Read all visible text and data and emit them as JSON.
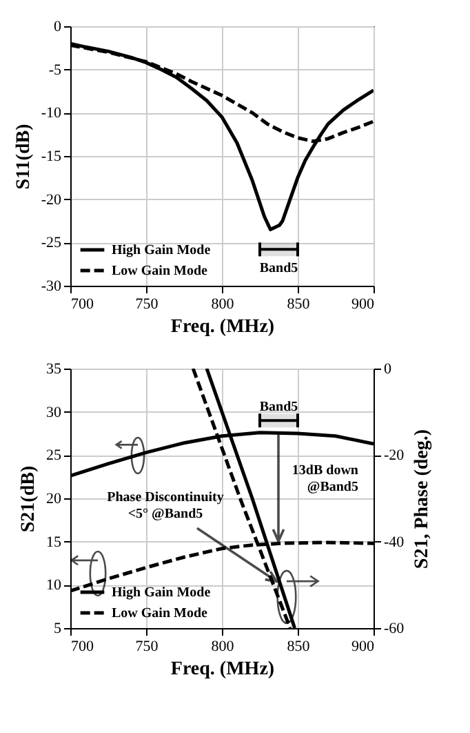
{
  "chart_data": [
    {
      "type": "line",
      "xlabel": "Freq.    (MHz)",
      "ylabel": "S11(dB)",
      "xlim": [
        700,
        900
      ],
      "xticks": [
        700,
        750,
        800,
        850,
        900
      ],
      "ylim": [
        -30,
        0
      ],
      "yticks": [
        -30,
        -25,
        -20,
        -15,
        -10,
        -5,
        0
      ],
      "grid": true,
      "legend": "bottom left",
      "bands": [
        {
          "axis": "x",
          "from": 825,
          "to": 850,
          "label": "Band5"
        }
      ],
      "series": [
        {
          "name": "High Gain Mode",
          "color": "#000000",
          "line_style": "solid",
          "x": [
            700,
            710,
            725,
            740,
            750,
            760,
            770,
            780,
            790,
            800,
            810,
            820,
            828,
            832,
            838,
            840,
            845,
            850,
            855,
            860,
            865,
            870,
            880,
            890,
            900
          ],
          "values": [
            -2,
            -2.4,
            -2.9,
            -3.6,
            -4.2,
            -5,
            -5.9,
            -7.2,
            -8.6,
            -10.5,
            -13.5,
            -17.8,
            -22,
            -23.5,
            -23,
            -22.5,
            -20,
            -17.5,
            -15.5,
            -14,
            -12.6,
            -11.3,
            -9.7,
            -8.5,
            -7.4
          ]
        },
        {
          "name": "Low Gain Mode",
          "color": "#000000",
          "line_style": "dashed",
          "x": [
            700,
            725,
            750,
            770,
            780,
            800,
            820,
            830,
            840,
            850,
            860,
            870,
            880,
            890,
            900
          ],
          "values": [
            -2.2,
            -3,
            -4.1,
            -5.5,
            -6.4,
            -8,
            -10,
            -11.3,
            -12.2,
            -12.9,
            -13.3,
            -13,
            -12.3,
            -11.7,
            -11
          ]
        }
      ]
    },
    {
      "type": "line",
      "xlabel": "Freq.    (MHz)",
      "ylabel": "S21(dB)",
      "y2label": "S21,  Phase  (deg.)",
      "xlim": [
        700,
        900
      ],
      "xticks": [
        700,
        750,
        800,
        850,
        900
      ],
      "ylim": [
        5,
        35
      ],
      "yticks": [
        5,
        10,
        15,
        20,
        25,
        30,
        35
      ],
      "y2lim": [
        -60,
        0
      ],
      "y2ticks": [
        -60,
        -40,
        -20,
        0
      ],
      "grid": true,
      "legend": "bottom left",
      "bands": [
        {
          "axis": "x",
          "from": 825,
          "to": 850,
          "label": "Band5"
        }
      ],
      "annotations": [
        {
          "text": "Phase Discontinuity\n<5°  @Band5",
          "x": 836,
          "y": 10.4
        },
        "13dB down\n@Band5"
      ],
      "series": [
        {
          "name": "High Gain Mode",
          "color": "#000000",
          "line_style": "solid",
          "x": [
            700,
            725,
            750,
            775,
            800,
            825,
            850,
            875,
            900
          ],
          "values": [
            22.6,
            24,
            25.3,
            26.4,
            27.2,
            27.6,
            27.5,
            27.2,
            26.3
          ]
        },
        {
          "name": "Low Gain Mode",
          "color": "#000000",
          "line_style": "dashed",
          "x": [
            700,
            725,
            750,
            775,
            800,
            820,
            840,
            870,
            900
          ],
          "values": [
            9.3,
            10.7,
            12,
            13.2,
            14.2,
            14.6,
            14.8,
            14.9,
            14.8
          ]
        },
        {
          "name": "High Gain Mode",
          "color": "#000000",
          "line_style": "solid",
          "axis": "y2",
          "x": [
            790,
            820,
            848
          ],
          "values": [
            0,
            -30,
            -60
          ]
        },
        {
          "name": "Low Gain Mode",
          "color": "#000000",
          "line_style": "dashed",
          "axis": "y2",
          "x": [
            781,
            812,
            845
          ],
          "values": [
            0,
            -30,
            -60
          ]
        }
      ]
    }
  ]
}
